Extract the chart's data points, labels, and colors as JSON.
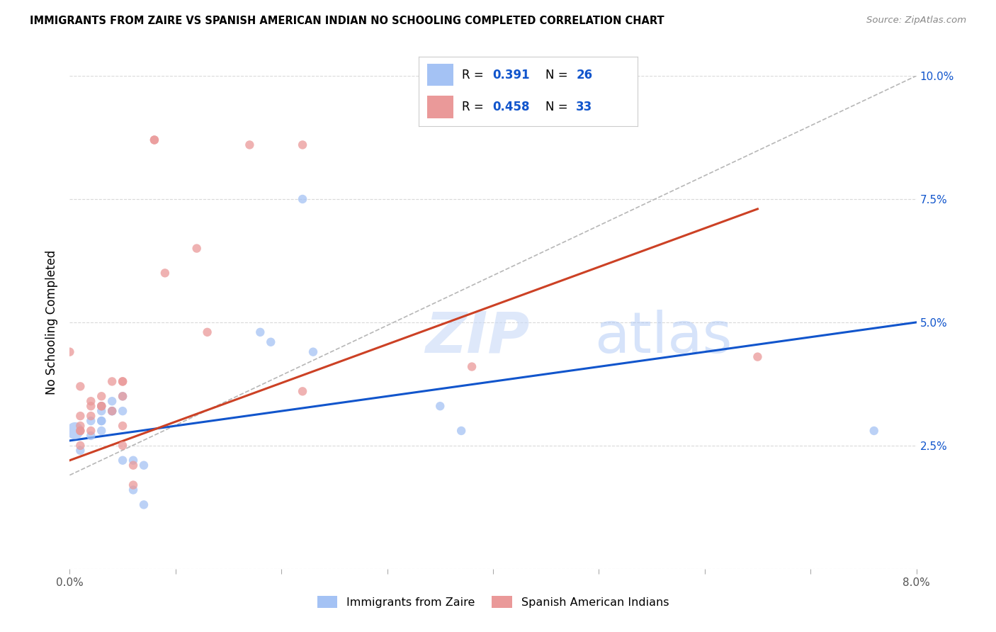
{
  "title": "IMMIGRANTS FROM ZAIRE VS SPANISH AMERICAN INDIAN NO SCHOOLING COMPLETED CORRELATION CHART",
  "source": "Source: ZipAtlas.com",
  "ylabel": "No Schooling Completed",
  "xlim": [
    0.0,
    0.08
  ],
  "ylim": [
    0.0,
    0.1
  ],
  "x_ticks": [
    0.0,
    0.01,
    0.02,
    0.03,
    0.04,
    0.05,
    0.06,
    0.07,
    0.08
  ],
  "x_tick_labels": [
    "0.0%",
    "",
    "",
    "",
    "",
    "",
    "",
    "",
    "8.0%"
  ],
  "y_ticks": [
    0.0,
    0.025,
    0.05,
    0.075,
    0.1
  ],
  "y_tick_labels": [
    "",
    "2.5%",
    "5.0%",
    "7.5%",
    "10.0%"
  ],
  "blue_R": "0.391",
  "blue_N": "26",
  "pink_R": "0.458",
  "pink_N": "33",
  "blue_color": "#a4c2f4",
  "pink_color": "#ea9999",
  "blue_line_color": "#1155cc",
  "pink_line_color": "#cc4125",
  "dashed_line_color": "#b7b7b7",
  "grid_color": "#d9d9d9",
  "blue_points_x": [
    0.0005,
    0.001,
    0.002,
    0.002,
    0.003,
    0.003,
    0.003,
    0.003,
    0.003,
    0.004,
    0.004,
    0.004,
    0.005,
    0.005,
    0.005,
    0.006,
    0.006,
    0.007,
    0.007,
    0.018,
    0.019,
    0.022,
    0.023,
    0.035,
    0.037,
    0.076
  ],
  "blue_points_y": [
    0.028,
    0.024,
    0.03,
    0.027,
    0.033,
    0.03,
    0.028,
    0.032,
    0.03,
    0.032,
    0.034,
    0.032,
    0.032,
    0.035,
    0.022,
    0.022,
    0.016,
    0.013,
    0.021,
    0.048,
    0.046,
    0.075,
    0.044,
    0.033,
    0.028,
    0.028
  ],
  "blue_points_size": [
    300,
    80,
    80,
    80,
    80,
    80,
    80,
    80,
    80,
    80,
    80,
    80,
    80,
    80,
    80,
    80,
    80,
    80,
    80,
    80,
    80,
    80,
    80,
    80,
    80,
    80
  ],
  "pink_points_x": [
    0.0,
    0.001,
    0.001,
    0.001,
    0.001,
    0.001,
    0.001,
    0.002,
    0.002,
    0.002,
    0.002,
    0.003,
    0.003,
    0.003,
    0.004,
    0.004,
    0.005,
    0.005,
    0.005,
    0.005,
    0.005,
    0.006,
    0.006,
    0.008,
    0.008,
    0.009,
    0.012,
    0.013,
    0.017,
    0.022,
    0.022,
    0.038,
    0.065
  ],
  "pink_points_y": [
    0.044,
    0.025,
    0.037,
    0.028,
    0.029,
    0.031,
    0.028,
    0.033,
    0.034,
    0.028,
    0.031,
    0.033,
    0.033,
    0.035,
    0.038,
    0.032,
    0.038,
    0.035,
    0.038,
    0.029,
    0.025,
    0.021,
    0.017,
    0.087,
    0.087,
    0.06,
    0.065,
    0.048,
    0.086,
    0.086,
    0.036,
    0.041,
    0.043
  ],
  "pink_points_size": [
    80,
    80,
    80,
    80,
    80,
    80,
    80,
    80,
    80,
    80,
    80,
    80,
    80,
    80,
    80,
    80,
    80,
    80,
    80,
    80,
    80,
    80,
    80,
    80,
    80,
    80,
    80,
    80,
    80,
    80,
    80,
    80,
    80
  ],
  "blue_line_x": [
    0.0,
    0.08
  ],
  "blue_line_y": [
    0.026,
    0.05
  ],
  "pink_line_x": [
    0.0,
    0.065
  ],
  "pink_line_y": [
    0.022,
    0.073
  ],
  "dashed_line_x": [
    0.0,
    0.08
  ],
  "dashed_line_y": [
    0.019,
    0.1
  ],
  "watermark_zip": "ZIP",
  "watermark_atlas": "atlas",
  "legend_label_blue": "Immigrants from Zaire",
  "legend_label_pink": "Spanish American Indians"
}
